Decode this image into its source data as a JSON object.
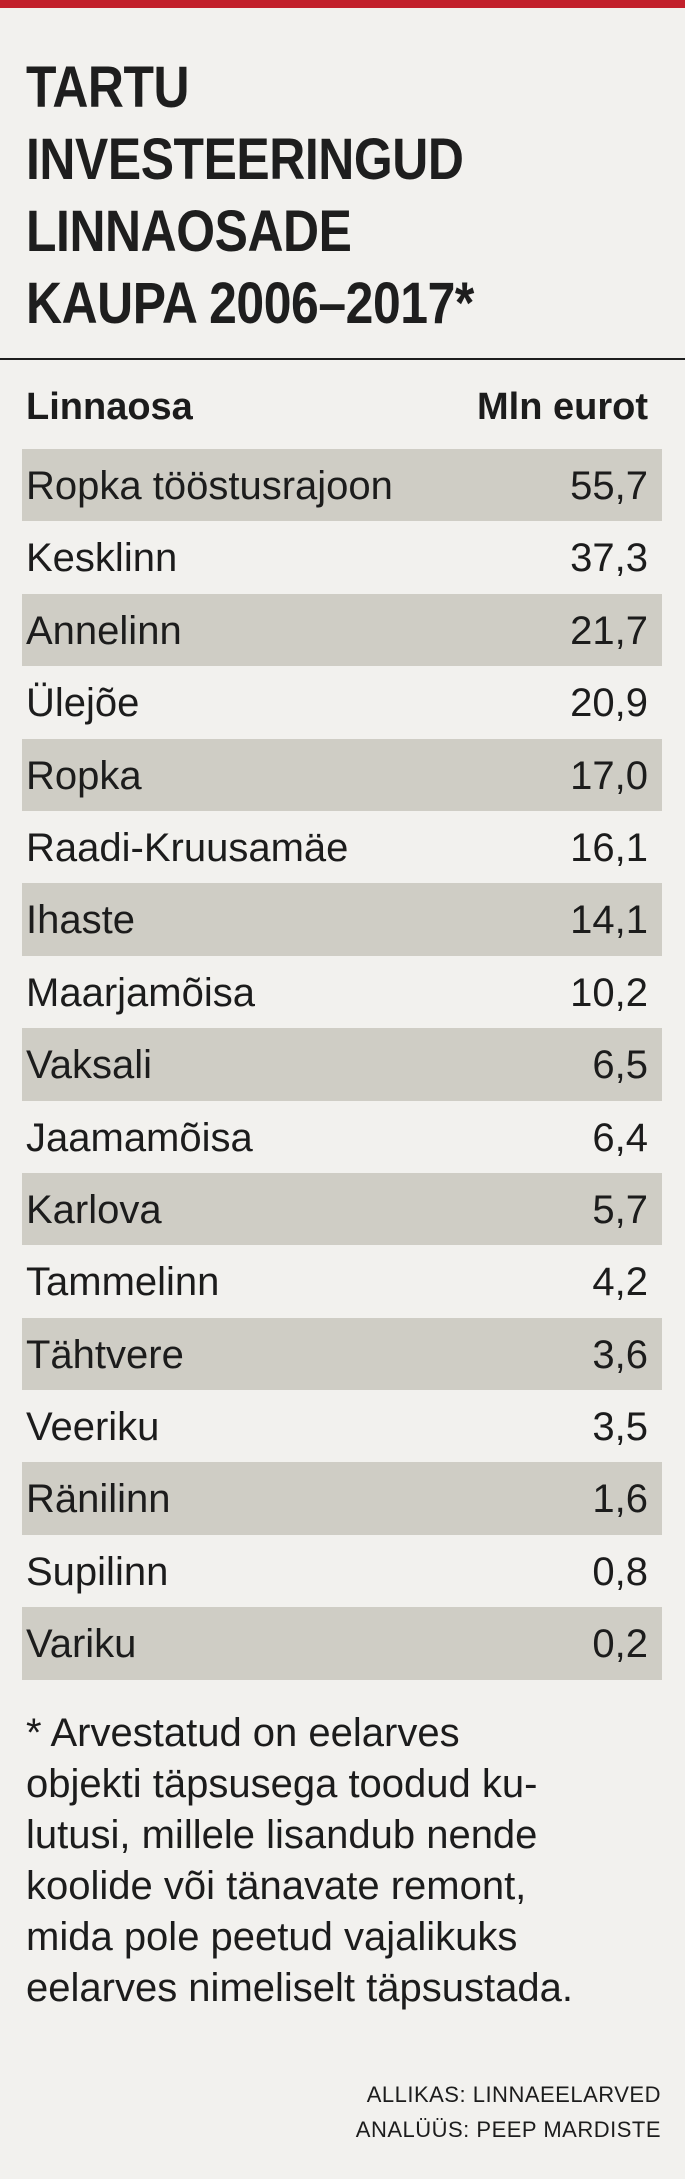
{
  "title": "TARTU\nINVESTEERINGUD\nLINNAOSADE\nKAUPA 2006–2017*",
  "table": {
    "header": {
      "name": "Linnaosa",
      "value": "Mln eurot"
    },
    "rows": [
      {
        "name": "Ropka tööstusrajoon",
        "value": "55,7"
      },
      {
        "name": "Kesklinn",
        "value": "37,3"
      },
      {
        "name": "Annelinn",
        "value": "21,7"
      },
      {
        "name": "Ülejõe",
        "value": "20,9"
      },
      {
        "name": "Ropka",
        "value": "17,0"
      },
      {
        "name": "Raadi-Kruusamäe",
        "value": "16,1"
      },
      {
        "name": "Ihaste",
        "value": "14,1"
      },
      {
        "name": "Maarjamõisa",
        "value": "10,2"
      },
      {
        "name": "Vaksali",
        "value": "6,5"
      },
      {
        "name": "Jaamamõisa",
        "value": "6,4"
      },
      {
        "name": "Karlova",
        "value": "5,7"
      },
      {
        "name": "Tammelinn",
        "value": "4,2"
      },
      {
        "name": "Tähtvere",
        "value": "3,6"
      },
      {
        "name": "Veeriku",
        "value": "3,5"
      },
      {
        "name": "Ränilinn",
        "value": "1,6"
      },
      {
        "name": "Supilinn",
        "value": "0,8"
      },
      {
        "name": "Variku",
        "value": "0,2"
      }
    ]
  },
  "footnote": "* Arvestatud on eelarves\nobjekti täpsusega toodud ku-\nlutusi, millele lisandub nende\nkoolide või tänavate remont,\nmida pole peetud vajalikuks\neelarves nimeliselt täpsustada.",
  "credits": {
    "source": "ALLIKAS: LINNAEELARVED",
    "analysis": "ANALÜÜS: PEEP MARDISTE"
  },
  "colors": {
    "accent": "#c2202b",
    "background": "#f2f1ee",
    "row_shade": "#cfcdc5",
    "text": "#1c1c1c"
  }
}
